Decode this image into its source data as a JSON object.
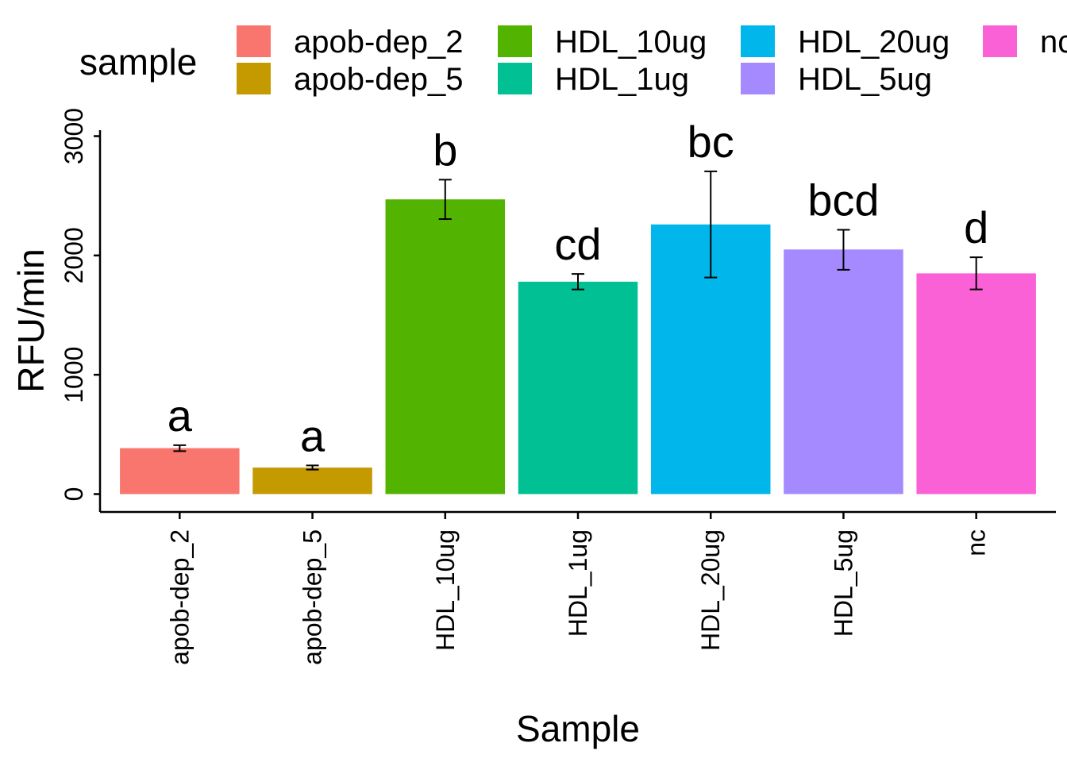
{
  "chart_data": {
    "type": "bar",
    "xlabel": "Sample",
    "ylabel": "RFU/min",
    "ylim": [
      -150,
      3050
    ],
    "yticks": [
      0,
      1000,
      2000,
      3000
    ],
    "grid": false,
    "legend": {
      "title": "sample",
      "placement": "top"
    },
    "categories": [
      "apob-dep_2",
      "apob-dep_5",
      "HDL_10ug",
      "HDL_1ug",
      "HDL_20ug",
      "HDL_5ug",
      "nc"
    ],
    "values": [
      385,
      222,
      2470,
      1780,
      2260,
      2050,
      1850
    ],
    "error_low": [
      360,
      205,
      2305,
      1715,
      1815,
      1880,
      1715
    ],
    "error_high": [
      410,
      240,
      2635,
      1845,
      2705,
      2215,
      1985
    ],
    "significance": [
      "a",
      "a",
      "b",
      "cd",
      "bc",
      "bcd",
      "d"
    ],
    "colors": [
      "#F8766D",
      "#C49A00",
      "#53B400",
      "#00C094",
      "#00B6EB",
      "#A58AFF",
      "#FB61D7"
    ]
  }
}
